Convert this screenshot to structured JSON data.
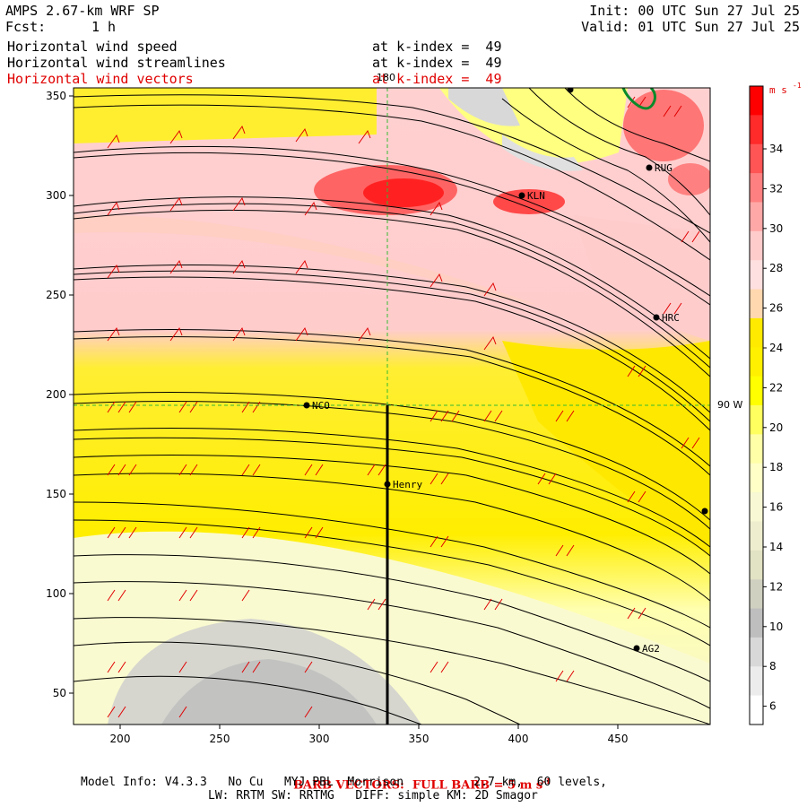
{
  "header": {
    "title": "AMPS 2.67-km WRF SP",
    "fcst_label": "Fcst:",
    "fcst_value": "1 h",
    "init": "Init: 00 UTC Sun 27 Jul 25",
    "valid": "Valid: 01 UTC Sun 27 Jul 25"
  },
  "fields": [
    {
      "name": "Horizontal wind speed",
      "level": "at k-index =  49",
      "color": "#000000"
    },
    {
      "name": "Horizontal wind streamlines",
      "level": "at k-index =  49",
      "color": "#000000"
    },
    {
      "name": "Horizontal wind vectors",
      "level": "at k-index =  49",
      "color": "#e00000"
    }
  ],
  "map": {
    "x_ticks": [
      "200",
      "250",
      "300",
      "350",
      "400",
      "450"
    ],
    "y_ticks": [
      "350",
      "300",
      "250",
      "200",
      "150",
      "100",
      "50"
    ],
    "meridian_label": "180",
    "parallel_label": "90 W",
    "stations": [
      {
        "label": "NCO"
      },
      {
        "label": "Henry"
      },
      {
        "label": "KLN"
      },
      {
        "label": "RUG"
      },
      {
        "label": "HRC"
      },
      {
        "label": "AG2"
      }
    ]
  },
  "colorbar": {
    "units": "m s",
    "units_exp": "-1",
    "labels": [
      "34",
      "32",
      "30",
      "28",
      "26",
      "24",
      "22",
      "20",
      "18",
      "16",
      "14",
      "12",
      "10",
      "8",
      "6"
    ],
    "colors": [
      "#ff0000",
      "#ff2a2a",
      "#ff5555",
      "#ff8080",
      "#ffa8a8",
      "#ffcccc",
      "#ffe0e0",
      "#ffd8b0",
      "#ffea00",
      "#fff000",
      "#ffff00",
      "#ffff60",
      "#ffffa8",
      "#ffffc8",
      "#f8f8d4",
      "#eeeecf",
      "#e2e2c4",
      "#d0d0c0",
      "#bebebe",
      "#d8d8d8",
      "#ececec",
      "#ffffff"
    ]
  },
  "footer": {
    "barb_note": "BARB VECTORS:  FULL BARB = 5 m s",
    "barb_exp": "-1",
    "model_info": "Model Info: V4.3.3   No Cu   MYJ PBL  Morrison          2.7 km,  60 levels,",
    "physics": "LW: RRTM SW: RRTMG   DIFF: simple KM: 2D Smagor"
  }
}
